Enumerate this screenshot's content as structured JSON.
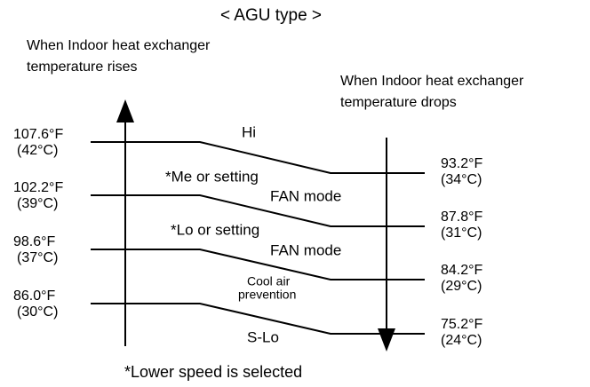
{
  "title": "< AGU type >",
  "left_heading": [
    "When Indoor heat exchanger",
    "temperature rises"
  ],
  "right_heading": [
    "When Indoor heat exchanger",
    "temperature drops"
  ],
  "left_levels": [
    {
      "f": "107.6°F",
      "c": "(42°C)"
    },
    {
      "f": "102.2°F",
      "c": "(39°C)"
    },
    {
      "f": "98.6°F",
      "c": "(37°C)"
    },
    {
      "f": "86.0°F",
      "c": "(30°C)"
    }
  ],
  "right_levels": [
    {
      "f": "93.2°F",
      "c": "(34°C)"
    },
    {
      "f": "87.8°F",
      "c": "(31°C)"
    },
    {
      "f": "84.2°F",
      "c": "(29°C)"
    },
    {
      "f": "75.2°F",
      "c": "(24°C)"
    }
  ],
  "zones": {
    "hi": "Hi",
    "me": [
      "*Me or setting",
      "FAN mode"
    ],
    "lo": [
      "*Lo or setting",
      "FAN mode"
    ],
    "cool": [
      "Cool air",
      "prevention"
    ],
    "slo": "S-Lo"
  },
  "footnote": "*Lower speed is selected"
}
